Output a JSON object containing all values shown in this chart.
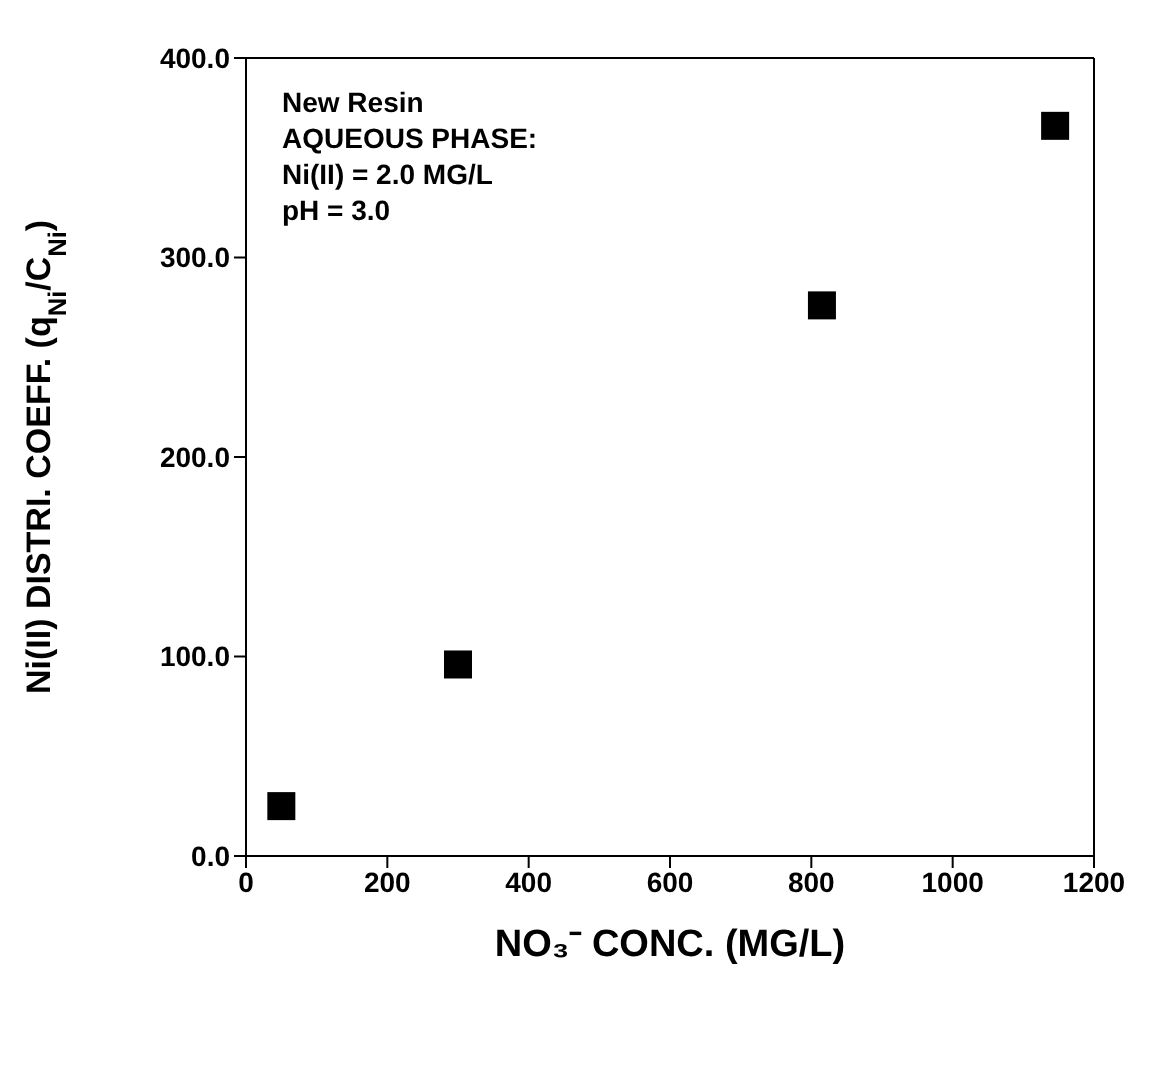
{
  "chart_data": {
    "type": "scatter",
    "xlabel": "NO₃⁻ CONC. (MG/L)",
    "ylabel": "Ni(II) DISTRI. COEFF. (q$_{Ni}$/C$_{Ni}$)",
    "annotations": [
      "New Resin",
      "AQUEOUS PHASE:",
      "Ni(II) = 2.0 MG/L",
      "pH = 3.0"
    ],
    "x": [
      50,
      300,
      815,
      1145
    ],
    "series": [
      {
        "color": "#000000",
        "values": [
          25,
          96,
          276,
          366
        ]
      }
    ],
    "xlim": [
      0,
      1200
    ],
    "xticks": [
      0,
      200,
      400,
      600,
      800,
      1000,
      1200
    ],
    "ylim": [
      0,
      400
    ],
    "yticks": [
      {
        "value": 0,
        "label": "0.0"
      },
      {
        "value": 100,
        "label": "100.0"
      },
      {
        "value": 200,
        "label": "200.0"
      },
      {
        "value": 300,
        "label": "300.0"
      },
      {
        "value": 400,
        "label": "400.0"
      }
    ],
    "marker": "square"
  }
}
